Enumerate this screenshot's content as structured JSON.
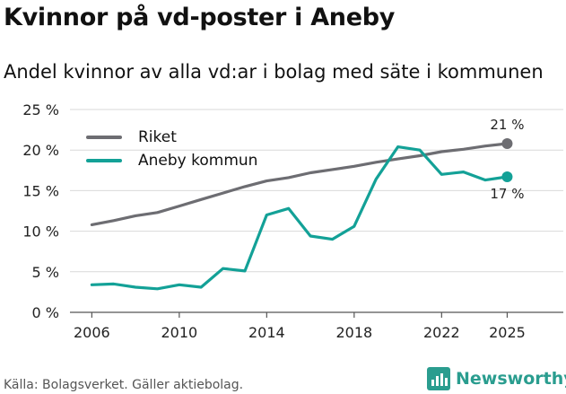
{
  "title": "Kvinnor på vd-poster i Aneby",
  "subtitle": "Andel kvinnor av alla vd:ar i bolag med säte i kommunen",
  "source": "Källa: Bolagsverket. Gäller aktiebolag.",
  "brand": {
    "name": "Newsworthy",
    "icon": "newsworthy-logo-icon"
  },
  "chart_data": {
    "type": "line",
    "title": "Kvinnor på vd-poster i Aneby",
    "xlabel": "",
    "ylabel": "",
    "x": [
      2006,
      2007,
      2008,
      2009,
      2010,
      2011,
      2012,
      2013,
      2014,
      2015,
      2016,
      2017,
      2018,
      2019,
      2020,
      2021,
      2022,
      2023,
      2024,
      2025
    ],
    "x_ticks": [
      2006,
      2010,
      2014,
      2018,
      2022,
      2025
    ],
    "x_tick_labels": [
      "2006",
      "2010",
      "2014",
      "2018",
      "2022",
      "2025"
    ],
    "ylim": [
      0,
      25
    ],
    "y_ticks": [
      0,
      5,
      10,
      15,
      20,
      25
    ],
    "y_tick_labels": [
      "0 %",
      "5 %",
      "10 %",
      "15 %",
      "20 %",
      "25 %"
    ],
    "grid": true,
    "legend_position": "top-left",
    "series": [
      {
        "name": "Riket",
        "color": "#6d6d72",
        "values": [
          10.8,
          11.3,
          11.9,
          12.3,
          13.1,
          13.9,
          14.7,
          15.5,
          16.2,
          16.6,
          17.2,
          17.6,
          18.0,
          18.5,
          18.9,
          19.3,
          19.8,
          20.1,
          20.5,
          20.8
        ],
        "end_label": "21 %"
      },
      {
        "name": "Aneby kommun",
        "color": "#13a197",
        "values": [
          3.4,
          3.5,
          3.1,
          2.9,
          3.4,
          3.1,
          5.4,
          5.1,
          12.0,
          12.8,
          9.4,
          9.0,
          10.6,
          16.4,
          20.4,
          20.0,
          17.0,
          17.3,
          16.3,
          16.7
        ],
        "end_label": "17 %"
      }
    ]
  }
}
